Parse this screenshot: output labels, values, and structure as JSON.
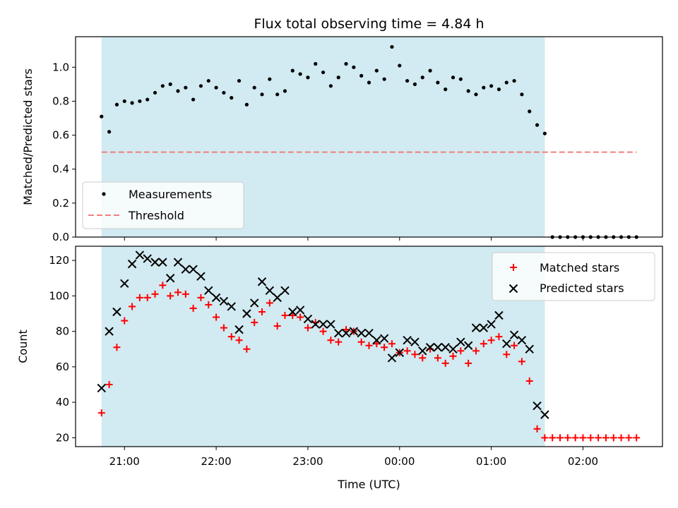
{
  "chart_data": [
    {
      "type": "scatter",
      "title": "Flux total observing time = 4.84 h",
      "ylabel": "Matched/Predicted stars",
      "xlabel": "",
      "ylim": [
        0,
        1.18
      ],
      "yticks": [
        0.0,
        0.2,
        0.4,
        0.6,
        0.8,
        1.0
      ],
      "yticklabels": [
        "0.0",
        "0.2",
        "0.4",
        "0.6",
        "0.8",
        "1.0"
      ],
      "xlim": [
        "20:28",
        "02:52"
      ],
      "xticks": [
        "21:00",
        "22:00",
        "23:00",
        "00:00",
        "01:00",
        "02:00"
      ],
      "xticklabels": [
        "",
        "",
        "",
        "",
        "",
        ""
      ],
      "shaded_span": [
        "20:45",
        "01:35"
      ],
      "shade_color": "#add8e6",
      "grid": false,
      "legend_position": "lower-left",
      "series": [
        {
          "name": "Measurements",
          "marker": "dot",
          "color": "#000000",
          "x": [
            "20:45",
            "20:50",
            "20:55",
            "21:00",
            "21:05",
            "21:10",
            "21:15",
            "21:20",
            "21:25",
            "21:30",
            "21:35",
            "21:40",
            "21:45",
            "21:50",
            "21:55",
            "22:00",
            "22:05",
            "22:10",
            "22:15",
            "22:20",
            "22:25",
            "22:30",
            "22:35",
            "22:40",
            "22:45",
            "22:50",
            "22:55",
            "23:00",
            "23:05",
            "23:10",
            "23:15",
            "23:20",
            "23:25",
            "23:30",
            "23:35",
            "23:40",
            "23:45",
            "23:50",
            "23:55",
            "00:00",
            "00:05",
            "00:10",
            "00:15",
            "00:20",
            "00:25",
            "00:30",
            "00:35",
            "00:40",
            "00:45",
            "00:50",
            "00:55",
            "01:00",
            "01:05",
            "01:10",
            "01:15",
            "01:20",
            "01:25",
            "01:30",
            "01:35",
            "01:40",
            "01:45",
            "01:50",
            "01:55",
            "02:00",
            "02:05",
            "02:10",
            "02:15",
            "02:20",
            "02:25",
            "02:30",
            "02:35"
          ],
          "y": [
            0.71,
            0.62,
            0.78,
            0.8,
            0.79,
            0.8,
            0.81,
            0.85,
            0.89,
            0.9,
            0.86,
            0.88,
            0.81,
            0.89,
            0.92,
            0.88,
            0.85,
            0.82,
            0.92,
            0.78,
            0.88,
            0.84,
            0.93,
            0.84,
            0.86,
            0.98,
            0.96,
            0.94,
            1.02,
            0.97,
            0.89,
            0.94,
            1.02,
            1.0,
            0.95,
            0.91,
            0.98,
            0.93,
            1.12,
            1.01,
            0.92,
            0.9,
            0.94,
            0.98,
            0.91,
            0.87,
            0.94,
            0.93,
            0.86,
            0.84,
            0.88,
            0.89,
            0.87,
            0.91,
            0.92,
            0.84,
            0.74,
            0.66,
            0.61,
            0.0,
            0.0,
            0.0,
            0.0,
            0.0,
            0.0,
            0.0,
            0.0,
            0.0,
            0.0,
            0.0,
            0.0
          ]
        },
        {
          "name": "Threshold",
          "marker": "dashed-line",
          "color": "#f08080",
          "x": [
            "20:45",
            "02:35"
          ],
          "y": [
            0.5,
            0.5
          ]
        }
      ]
    },
    {
      "type": "scatter",
      "title": "",
      "ylabel": "Count",
      "xlabel": "Time (UTC)",
      "ylim": [
        15,
        128
      ],
      "yticks": [
        20,
        40,
        60,
        80,
        100,
        120
      ],
      "yticklabels": [
        "20",
        "40",
        "60",
        "80",
        "100",
        "120"
      ],
      "xlim": [
        "20:28",
        "02:52"
      ],
      "xticks": [
        "21:00",
        "22:00",
        "23:00",
        "00:00",
        "01:00",
        "02:00"
      ],
      "xticklabels": [
        "21:00",
        "22:00",
        "23:00",
        "00:00",
        "01:00",
        "02:00"
      ],
      "shaded_span": [
        "20:45",
        "01:35"
      ],
      "shade_color": "#add8e6",
      "grid": false,
      "legend_position": "upper-right",
      "series": [
        {
          "name": "Matched stars",
          "marker": "plus",
          "color": "#ff0000",
          "x": [
            "20:45",
            "20:50",
            "20:55",
            "21:00",
            "21:05",
            "21:10",
            "21:15",
            "21:20",
            "21:25",
            "21:30",
            "21:35",
            "21:40",
            "21:45",
            "21:50",
            "21:55",
            "22:00",
            "22:05",
            "22:10",
            "22:15",
            "22:20",
            "22:25",
            "22:30",
            "22:35",
            "22:40",
            "22:45",
            "22:50",
            "22:55",
            "23:00",
            "23:05",
            "23:10",
            "23:15",
            "23:20",
            "23:25",
            "23:30",
            "23:35",
            "23:40",
            "23:45",
            "23:50",
            "23:55",
            "00:00",
            "00:05",
            "00:10",
            "00:15",
            "00:20",
            "00:25",
            "00:30",
            "00:35",
            "00:40",
            "00:45",
            "00:50",
            "00:55",
            "01:00",
            "01:05",
            "01:10",
            "01:15",
            "01:20",
            "01:25",
            "01:30",
            "01:35",
            "01:40",
            "01:45",
            "01:50",
            "01:55",
            "02:00",
            "02:05",
            "02:10",
            "02:15",
            "02:20",
            "02:25",
            "02:30",
            "02:35"
          ],
          "y": [
            34,
            50,
            71,
            86,
            94,
            99,
            99,
            101,
            106,
            100,
            102,
            101,
            93,
            99,
            95,
            88,
            82,
            77,
            75,
            70,
            85,
            91,
            96,
            83,
            89,
            89,
            88,
            82,
            85,
            80,
            75,
            74,
            81,
            80,
            74,
            72,
            73,
            71,
            73,
            68,
            69,
            67,
            65,
            70,
            65,
            62,
            66,
            69,
            62,
            69,
            73,
            75,
            77,
            67,
            72,
            63,
            52,
            25,
            20,
            20,
            20,
            20,
            20,
            20,
            20,
            20,
            20,
            20,
            20,
            20,
            20
          ]
        },
        {
          "name": "Predicted stars",
          "marker": "x",
          "color": "#000000",
          "x": [
            "20:45",
            "20:50",
            "20:55",
            "21:00",
            "21:05",
            "21:10",
            "21:15",
            "21:20",
            "21:25",
            "21:30",
            "21:35",
            "21:40",
            "21:45",
            "21:50",
            "21:55",
            "22:00",
            "22:05",
            "22:10",
            "22:15",
            "22:20",
            "22:25",
            "22:30",
            "22:35",
            "22:40",
            "22:45",
            "22:50",
            "22:55",
            "23:00",
            "23:05",
            "23:10",
            "23:15",
            "23:20",
            "23:25",
            "23:30",
            "23:35",
            "23:40",
            "23:45",
            "23:50",
            "23:55",
            "00:00",
            "00:05",
            "00:10",
            "00:15",
            "00:20",
            "00:25",
            "00:30",
            "00:35",
            "00:40",
            "00:45",
            "00:50",
            "00:55",
            "01:00",
            "01:05",
            "01:10",
            "01:15",
            "01:20",
            "01:25",
            "01:30",
            "01:35"
          ],
          "y": [
            48,
            80,
            91,
            107,
            118,
            123,
            121,
            119,
            119,
            110,
            119,
            115,
            115,
            111,
            103,
            99,
            97,
            94,
            81,
            90,
            96,
            108,
            103,
            99,
            103,
            91,
            92,
            87,
            84,
            84,
            84,
            79,
            79,
            80,
            79,
            79,
            75,
            76,
            65,
            68,
            75,
            74,
            69,
            71,
            71,
            71,
            70,
            74,
            72,
            82,
            82,
            84,
            89,
            73,
            78,
            75,
            70,
            38,
            33
          ]
        }
      ]
    }
  ]
}
